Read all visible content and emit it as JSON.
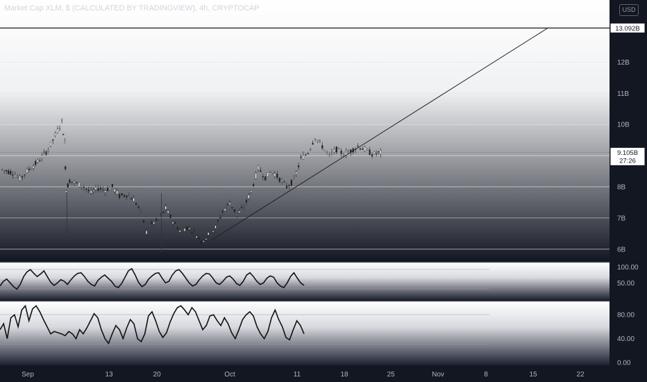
{
  "header": {
    "title": "Market Cap XLM, $ (CALCULATED BY TRADINGVIEW), 4h, CRYPTOCAP",
    "currency": "USD"
  },
  "price_tag": {
    "value": "9.105B",
    "countdown": "27:26"
  },
  "chart_data": [
    {
      "type": "candlestick",
      "title": "Market Cap XLM, $ (CALCULATED BY TRADINGVIEW), 4h, CRYPTOCAP",
      "y_ticks": [
        "6B",
        "7B",
        "8B",
        "9B",
        "10B",
        "11B",
        "12B"
      ],
      "ylim": [
        5.75,
        13.5
      ],
      "x_ticks": [
        "Sep",
        "13",
        "20",
        "Oct",
        "11",
        "18",
        "25",
        "Nov",
        "8",
        "15",
        "22"
      ],
      "resistance_level": {
        "value": 13.092,
        "label": "13.092B"
      },
      "last_price": 9.105,
      "series_close": [
        {
          "t": 0,
          "v": 8.55
        },
        {
          "t": 1.5,
          "v": 8.45
        },
        {
          "t": 2.5,
          "v": 8.25
        },
        {
          "t": 3.5,
          "v": 8.5
        },
        {
          "t": 5,
          "v": 8.8
        },
        {
          "t": 6.5,
          "v": 9.2
        },
        {
          "t": 7.8,
          "v": 9.8
        },
        {
          "t": 8.4,
          "v": 10.1
        },
        {
          "t": 8.8,
          "v": 9.4
        },
        {
          "t": 9.0,
          "v": 7.9
        },
        {
          "t": 9.5,
          "v": 8.2
        },
        {
          "t": 10.5,
          "v": 8.1
        },
        {
          "t": 11.5,
          "v": 8.0
        },
        {
          "t": 12.5,
          "v": 7.8
        },
        {
          "t": 13.5,
          "v": 7.95
        },
        {
          "t": 14.5,
          "v": 7.9
        },
        {
          "t": 15.5,
          "v": 8.0
        },
        {
          "t": 16.5,
          "v": 7.7
        },
        {
          "t": 17.5,
          "v": 7.75
        },
        {
          "t": 18.5,
          "v": 7.6
        },
        {
          "t": 19.5,
          "v": 7.2
        },
        {
          "t": 20.3,
          "v": 6.55
        },
        {
          "t": 21,
          "v": 6.8
        },
        {
          "t": 22,
          "v": 6.95
        },
        {
          "t": 23,
          "v": 7.3
        },
        {
          "t": 24,
          "v": 6.9
        },
        {
          "t": 25,
          "v": 6.6
        },
        {
          "t": 26,
          "v": 6.7
        },
        {
          "t": 27,
          "v": 6.55
        },
        {
          "t": 28,
          "v": 6.25
        },
        {
          "t": 29,
          "v": 6.45
        },
        {
          "t": 30,
          "v": 6.7
        },
        {
          "t": 31,
          "v": 7.2
        },
        {
          "t": 32,
          "v": 7.5
        },
        {
          "t": 33,
          "v": 7.1
        },
        {
          "t": 34,
          "v": 7.35
        },
        {
          "t": 35,
          "v": 7.85
        },
        {
          "t": 36,
          "v": 8.6
        },
        {
          "t": 37,
          "v": 8.3
        },
        {
          "t": 38,
          "v": 8.5
        },
        {
          "t": 39,
          "v": 8.25
        },
        {
          "t": 40,
          "v": 8.0
        },
        {
          "t": 41,
          "v": 8.2
        },
        {
          "t": 42,
          "v": 8.9
        },
        {
          "t": 43,
          "v": 9.1
        },
        {
          "t": 44,
          "v": 9.6
        },
        {
          "t": 45,
          "v": 9.3
        },
        {
          "t": 46,
          "v": 9.0
        },
        {
          "t": 47,
          "v": 9.2
        },
        {
          "t": 48,
          "v": 9.05
        },
        {
          "t": 49,
          "v": 9.15
        },
        {
          "t": 50,
          "v": 9.3
        },
        {
          "t": 51,
          "v": 9.2
        },
        {
          "t": 52,
          "v": 9.05
        },
        {
          "t": 53.5,
          "v": 9.1
        }
      ],
      "trend_line": {
        "from": {
          "t": 29.5,
          "v": 6.3
        },
        "to": {
          "t": 76.7,
          "v": 13.092
        }
      }
    },
    {
      "type": "line",
      "name": "oscillator-1",
      "y_ticks": [
        "50.00",
        "100.00"
      ],
      "ylim": [
        0,
        110
      ],
      "values": [
        40,
        55,
        62,
        50,
        38,
        30,
        45,
        70,
        85,
        92,
        80,
        70,
        78,
        88,
        70,
        52,
        42,
        50,
        60,
        55,
        45,
        60,
        72,
        80,
        82,
        70,
        55,
        45,
        40,
        58,
        68,
        75,
        65,
        55,
        40,
        35,
        48,
        68,
        88,
        95,
        75,
        52,
        38,
        45,
        62,
        72,
        80,
        82,
        65,
        50,
        55,
        75,
        88,
        92,
        80,
        65,
        50,
        40,
        45,
        60,
        72,
        80,
        78,
        65,
        50,
        45,
        55,
        68,
        72,
        62,
        48,
        42,
        55,
        75,
        82,
        70,
        55,
        45,
        50,
        65,
        72,
        68,
        50,
        40,
        35,
        50,
        70,
        82,
        65,
        50,
        42
      ]
    },
    {
      "type": "line",
      "name": "oscillator-2",
      "y_ticks": [
        "0.00",
        "40.00",
        "80.00"
      ],
      "ylim": [
        0,
        100
      ],
      "values": [
        55,
        65,
        40,
        75,
        80,
        60,
        88,
        95,
        70,
        90,
        95,
        85,
        72,
        60,
        48,
        52,
        50,
        48,
        45,
        52,
        48,
        40,
        55,
        48,
        58,
        70,
        82,
        75,
        55,
        40,
        32,
        48,
        62,
        55,
        40,
        58,
        72,
        65,
        40,
        35,
        48,
        78,
        85,
        70,
        52,
        42,
        50,
        68,
        82,
        92,
        95,
        88,
        80,
        92,
        85,
        70,
        55,
        62,
        78,
        80,
        70,
        62,
        75,
        65,
        50,
        40,
        55,
        72,
        80,
        85,
        78,
        60,
        48,
        40,
        52,
        75,
        88,
        72,
        60,
        42,
        38,
        55,
        70,
        62,
        48
      ]
    }
  ]
}
